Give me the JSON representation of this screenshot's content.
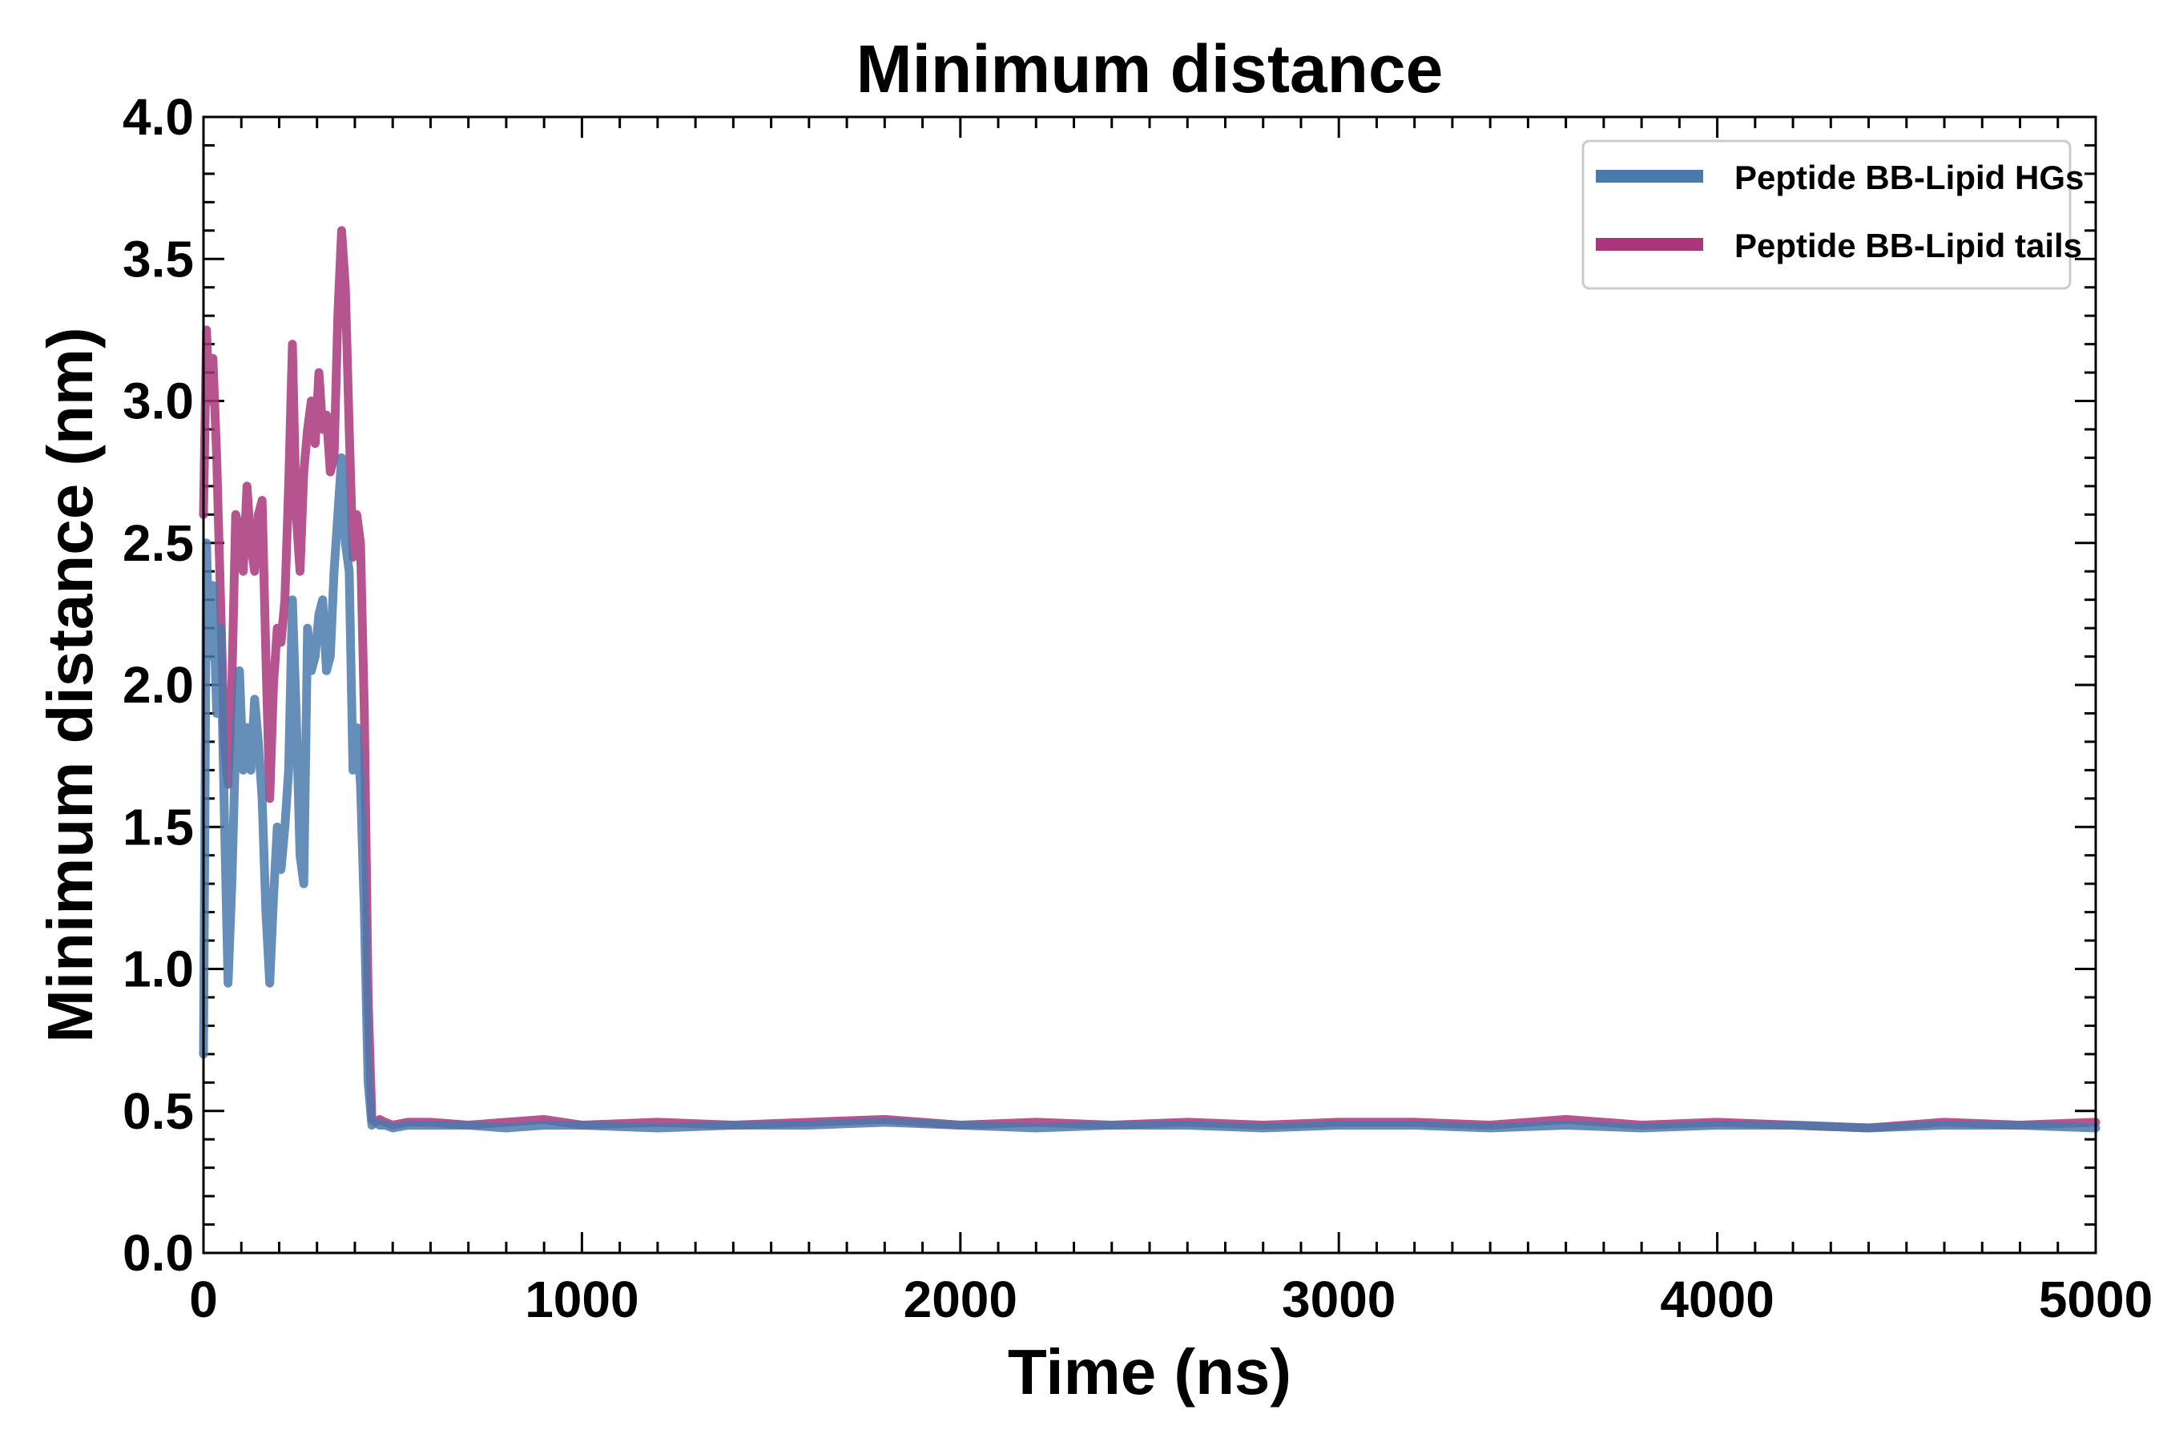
{
  "chart_data": {
    "type": "line",
    "title": "Minimum distance",
    "xlabel": "Time (ns)",
    "ylabel": "Minimum distance (nm)",
    "xlim": [
      0,
      5000
    ],
    "ylim": [
      0,
      4.0
    ],
    "x_ticks": [
      0,
      1000,
      2000,
      3000,
      4000,
      5000
    ],
    "x_tick_labels": [
      "0",
      "1000",
      "2000",
      "3000",
      "4000",
      "5000"
    ],
    "y_ticks": [
      0.0,
      0.5,
      1.0,
      1.5,
      2.0,
      2.5,
      3.0,
      3.5,
      4.0
    ],
    "y_tick_labels": [
      "0.0",
      "0.5",
      "1.0",
      "1.5",
      "2.0",
      "2.5",
      "3.0",
      "3.5",
      "4.0"
    ],
    "grid": false,
    "legend_position": "top-right",
    "series": [
      {
        "name": "Peptide BB-Lipid HGs",
        "color": "#4a7aad",
        "x": [
          0,
          8,
          15,
          25,
          35,
          45,
          55,
          65,
          75,
          85,
          95,
          105,
          115,
          125,
          135,
          145,
          155,
          165,
          175,
          185,
          195,
          205,
          215,
          225,
          235,
          245,
          255,
          265,
          275,
          285,
          295,
          305,
          315,
          325,
          335,
          345,
          355,
          365,
          375,
          385,
          395,
          405,
          415,
          425,
          435,
          445,
          455,
          465,
          480,
          500,
          540,
          600,
          700,
          800,
          900,
          1000,
          1200,
          1400,
          1600,
          1800,
          2000,
          2200,
          2400,
          2600,
          2800,
          3000,
          3200,
          3400,
          3600,
          3800,
          4000,
          4200,
          4400,
          4600,
          4800,
          5000
        ],
        "y": [
          0.7,
          2.5,
          2.1,
          2.35,
          1.9,
          2.2,
          1.55,
          0.95,
          1.3,
          1.8,
          2.05,
          1.7,
          1.85,
          1.7,
          1.95,
          1.8,
          1.6,
          1.2,
          0.95,
          1.25,
          1.5,
          1.35,
          1.5,
          1.7,
          2.3,
          1.9,
          1.4,
          1.3,
          2.2,
          2.05,
          2.1,
          2.25,
          2.3,
          2.05,
          2.1,
          2.4,
          2.6,
          2.8,
          2.5,
          2.4,
          1.7,
          1.85,
          1.65,
          1.2,
          0.6,
          0.45,
          0.46,
          0.45,
          0.45,
          0.44,
          0.45,
          0.45,
          0.45,
          0.44,
          0.45,
          0.45,
          0.44,
          0.45,
          0.45,
          0.46,
          0.45,
          0.44,
          0.45,
          0.45,
          0.44,
          0.45,
          0.45,
          0.44,
          0.45,
          0.44,
          0.45,
          0.45,
          0.44,
          0.45,
          0.45,
          0.44
        ]
      },
      {
        "name": "Peptide BB-Lipid tails",
        "color": "#a8367a",
        "x": [
          0,
          8,
          15,
          25,
          35,
          45,
          55,
          65,
          75,
          85,
          95,
          105,
          115,
          125,
          135,
          145,
          155,
          165,
          175,
          185,
          195,
          205,
          215,
          225,
          235,
          245,
          255,
          265,
          275,
          285,
          295,
          305,
          315,
          325,
          335,
          345,
          355,
          365,
          375,
          385,
          395,
          405,
          415,
          425,
          435,
          445,
          455,
          465,
          480,
          500,
          540,
          600,
          700,
          800,
          900,
          1000,
          1200,
          1400,
          1600,
          1800,
          2000,
          2200,
          2400,
          2600,
          2800,
          3000,
          3200,
          3400,
          3600,
          3800,
          4000,
          4200,
          4400,
          4600,
          4800,
          5000
        ],
        "y": [
          2.6,
          3.25,
          3.0,
          3.15,
          2.8,
          2.3,
          1.8,
          1.65,
          2.0,
          2.6,
          2.55,
          2.4,
          2.7,
          2.5,
          2.4,
          2.6,
          2.65,
          2.1,
          1.6,
          2.0,
          2.2,
          2.15,
          2.3,
          2.7,
          3.2,
          2.6,
          2.4,
          2.75,
          2.9,
          3.0,
          2.85,
          3.1,
          2.9,
          2.95,
          2.75,
          2.8,
          3.3,
          3.6,
          3.4,
          2.9,
          2.45,
          2.6,
          2.5,
          1.9,
          0.9,
          0.47,
          0.46,
          0.47,
          0.46,
          0.45,
          0.46,
          0.46,
          0.45,
          0.46,
          0.47,
          0.45,
          0.46,
          0.45,
          0.46,
          0.47,
          0.45,
          0.46,
          0.45,
          0.46,
          0.45,
          0.46,
          0.46,
          0.45,
          0.47,
          0.45,
          0.46,
          0.45,
          0.44,
          0.46,
          0.45,
          0.46
        ]
      }
    ]
  }
}
